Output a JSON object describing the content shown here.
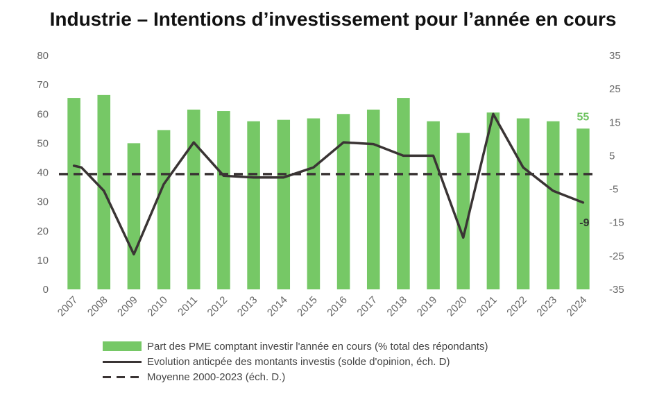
{
  "chart_data": {
    "type": "bar",
    "title": "Industrie – Intentions d’investissement pour l’année en cours",
    "categories": [
      "2007",
      "2008",
      "2009",
      "2010",
      "2011",
      "2012",
      "2013",
      "2014",
      "2015",
      "2016",
      "2017",
      "2018",
      "2019",
      "2020",
      "2021",
      "2022",
      "2023",
      "2024"
    ],
    "series": [
      {
        "name": "Part des PME comptant investir l'année en cours (% total des répondants)",
        "type": "bar",
        "axis": "left",
        "color": "#76c866",
        "values": [
          65.5,
          66.5,
          50,
          54.5,
          61.5,
          61,
          57.5,
          58,
          58.5,
          60,
          61.5,
          65.5,
          57.5,
          53.5,
          60.5,
          58.5,
          57.5,
          55
        ]
      },
      {
        "name": "Evolution anticpée des montants investis (solde d'opinion, éch. D)",
        "type": "line",
        "axis": "right",
        "color": "#3a3434",
        "values": [
          2,
          -5.5,
          -24.5,
          -3.5,
          9,
          -1,
          -1.5,
          -1.5,
          1.5,
          9,
          8.5,
          5,
          5,
          -19.5,
          17.5,
          1.5,
          -5.5,
          -9
        ],
        "points": [
          [
            0,
            2
          ],
          [
            0.25,
            1.5
          ],
          [
            1,
            -5.5
          ],
          [
            2,
            -24.5
          ],
          [
            3,
            -3.5
          ],
          [
            4,
            9
          ],
          [
            5,
            -1
          ],
          [
            6,
            -1.5
          ],
          [
            7,
            -1.5
          ],
          [
            8,
            1.5
          ],
          [
            9,
            9
          ],
          [
            10,
            8.5
          ],
          [
            11,
            5
          ],
          [
            12,
            5
          ],
          [
            13,
            -19.5
          ],
          [
            14,
            17.5
          ],
          [
            15,
            1.5
          ],
          [
            16,
            -5.5
          ],
          [
            17,
            -9
          ]
        ]
      },
      {
        "name": "Moyenne 2000-2023 (éch. D.)",
        "type": "line",
        "style": "dashed",
        "axis": "right",
        "color": "#3a3434",
        "value": -0.5
      }
    ],
    "left_axis": {
      "ylim": [
        0,
        80
      ],
      "ticks": [
        "0",
        "10",
        "20",
        "30",
        "40",
        "50",
        "60",
        "70",
        "80"
      ]
    },
    "right_axis": {
      "ylim": [
        -35,
        35
      ],
      "ticks": [
        "-35",
        "-25",
        "-15",
        "-5",
        "5",
        "15",
        "25",
        "35"
      ]
    },
    "annotations": {
      "bar_last": "55",
      "line_last": "-9"
    },
    "grid": false,
    "legend_position": "bottom"
  }
}
